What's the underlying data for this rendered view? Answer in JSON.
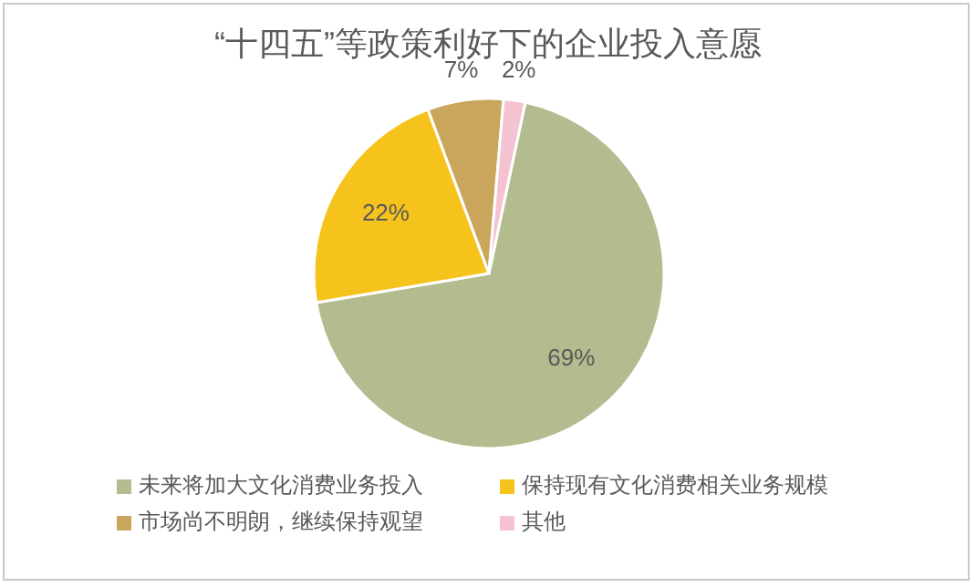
{
  "chart_data": {
    "type": "pie",
    "title": "“十四五”等政策利好下的企业投入意愿",
    "categories": [
      "未来将加大文化消费业务投入",
      "保持现有文化消费相关业务规模",
      "市场尚不明朗，继续保持观望",
      "其他"
    ],
    "values": [
      69,
      22,
      7,
      2
    ],
    "colors": [
      "#b3bc8e",
      "#f6c31c",
      "#c9a65c",
      "#f5c2d2"
    ],
    "value_labels": [
      "69%",
      "22%",
      "7%",
      "2%"
    ],
    "legend": "bottom"
  }
}
